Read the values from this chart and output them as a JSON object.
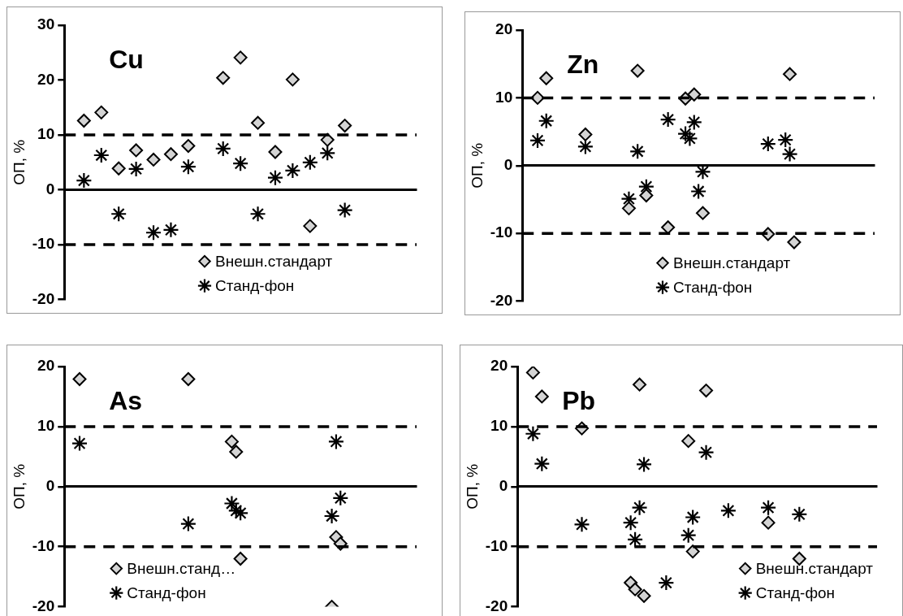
{
  "chart_data": [
    {
      "type": "scatter",
      "title": "Cu",
      "ylabel": "ОП, %",
      "categories": [
        null,
        null,
        null,
        null,
        null,
        null,
        null,
        null,
        null,
        null,
        null,
        null,
        null,
        null,
        null,
        null,
        null,
        null,
        null,
        null,
        null,
        null,
        null,
        null,
        null,
        null,
        null,
        null,
        null,
        null,
        null,
        null,
        null,
        null,
        null,
        null,
        null,
        null,
        null,
        null,
        null,
        null,
        null,
        null,
        null,
        null,
        null,
        null,
        null,
        null,
        null,
        null,
        null,
        null,
        null,
        null,
        null,
        null,
        null,
        null,
        null,
        null,
        null,
        null,
        null,
        null,
        null,
        null,
        null,
        null,
        null,
        null,
        null,
        null,
        null,
        null,
        null,
        null,
        null,
        null,
        null
      ],
      "ylim": [
        -20,
        30
      ],
      "yticks": [
        -20,
        -10,
        0,
        10,
        20,
        30
      ],
      "tick_labels": "y",
      "legend": "bottom",
      "line_style": "dashed",
      "ref_lines": [
        {
          "axis": "y",
          "value": 10
        },
        {
          "axis": "y",
          "value": -10
        }
      ],
      "series": [
        {
          "name": "Внешн.стандарт",
          "color": "#d4d4d4",
          "marker": "diamond",
          "values": [
            null,
            null,
            null,
            null,
            12.6,
            null,
            null,
            null,
            14.1,
            null,
            null,
            null,
            3.9,
            null,
            null,
            null,
            7.2,
            null,
            null,
            null,
            5.5,
            null,
            null,
            null,
            6.5,
            null,
            null,
            null,
            8.0,
            null,
            null,
            null,
            null,
            null,
            null,
            null,
            20.4,
            null,
            null,
            null,
            24.1,
            null,
            null,
            null,
            12.2,
            null,
            null,
            null,
            6.9,
            null,
            null,
            null,
            20.1,
            null,
            null,
            null,
            -6.6,
            null,
            null,
            null,
            9.1,
            null,
            null,
            null,
            11.7,
            null,
            null,
            null,
            null,
            null,
            null,
            null,
            null,
            null,
            null,
            null,
            null,
            null,
            null,
            null,
            null
          ]
        },
        {
          "name": "Станд-фон",
          "color": "#000000",
          "marker": "cross",
          "values": [
            null,
            null,
            null,
            null,
            1.7,
            null,
            null,
            null,
            6.3,
            null,
            null,
            null,
            -4.4,
            null,
            null,
            null,
            3.8,
            null,
            null,
            null,
            -7.8,
            null,
            null,
            null,
            -7.3,
            null,
            null,
            null,
            4.2,
            null,
            null,
            null,
            null,
            null,
            null,
            null,
            7.5,
            null,
            null,
            null,
            4.8,
            null,
            null,
            null,
            -4.4,
            null,
            null,
            null,
            2.2,
            null,
            null,
            null,
            3.5,
            null,
            null,
            null,
            5.0,
            null,
            null,
            null,
            6.7,
            null,
            null,
            null,
            -3.7,
            null,
            null,
            null,
            null,
            null,
            null,
            null,
            null,
            null,
            null,
            null,
            null,
            null,
            null,
            null,
            null
          ]
        }
      ]
    },
    {
      "type": "scatter",
      "title": "Zn",
      "ylabel": "ОП, %",
      "categories": [
        null,
        null,
        null,
        null,
        null,
        null,
        null,
        null,
        null,
        null,
        null,
        null,
        null,
        null,
        null,
        null,
        null,
        null,
        null,
        null,
        null,
        null,
        null,
        null,
        null,
        null,
        null,
        null,
        null,
        null,
        null,
        null,
        null,
        null,
        null,
        null,
        null,
        null,
        null,
        null,
        null,
        null,
        null,
        null,
        null,
        null,
        null,
        null,
        null,
        null,
        null,
        null,
        null,
        null,
        null,
        null,
        null,
        null,
        null,
        null,
        null,
        null,
        null,
        null,
        null,
        null,
        null,
        null,
        null,
        null,
        null,
        null,
        null,
        null,
        null,
        null,
        null,
        null,
        null,
        null,
        null
      ],
      "ylim": [
        -20,
        20
      ],
      "yticks": [
        -20,
        -10,
        0,
        10,
        20
      ],
      "tick_labels": "y",
      "legend": "bottom",
      "line_style": "dashed",
      "ref_lines": [
        {
          "axis": "y",
          "value": 10
        },
        {
          "axis": "y",
          "value": -10
        }
      ],
      "series": [
        {
          "name": "Внешн.стандарт",
          "color": "#d4d4d4",
          "marker": "diamond",
          "values": [
            null,
            null,
            null,
            10.0,
            null,
            12.9,
            null,
            null,
            null,
            null,
            null,
            null,
            null,
            null,
            4.6,
            null,
            null,
            null,
            null,
            null,
            null,
            null,
            null,
            null,
            -6.3,
            null,
            14.0,
            null,
            -4.4,
            null,
            null,
            null,
            null,
            -9.1,
            null,
            null,
            null,
            9.9,
            null,
            10.5,
            null,
            -7.0,
            null,
            null,
            null,
            null,
            null,
            null,
            null,
            null,
            null,
            null,
            null,
            null,
            null,
            null,
            -10.1,
            null,
            null,
            null,
            null,
            13.5,
            -11.3,
            null,
            null,
            null,
            null,
            null,
            null,
            null,
            null,
            null,
            null,
            null,
            null,
            null,
            null,
            null,
            null,
            null,
            null
          ]
        },
        {
          "name": "Станд-фон",
          "color": "#000000",
          "marker": "cross",
          "values": [
            null,
            null,
            null,
            3.7,
            null,
            6.6,
            null,
            null,
            null,
            null,
            null,
            null,
            null,
            null,
            2.8,
            null,
            null,
            null,
            null,
            null,
            null,
            null,
            null,
            null,
            -4.9,
            null,
            2.1,
            null,
            -3.1,
            null,
            null,
            null,
            null,
            6.8,
            null,
            null,
            null,
            4.7,
            4.0,
            6.4,
            -3.8,
            -0.9,
            null,
            null,
            null,
            null,
            null,
            null,
            null,
            null,
            null,
            null,
            null,
            null,
            null,
            null,
            3.2,
            null,
            null,
            null,
            3.8,
            1.7,
            null,
            null,
            null,
            null,
            null,
            null,
            null,
            null,
            null,
            null,
            null,
            null,
            null,
            null,
            null,
            null,
            null,
            null,
            null
          ]
        }
      ]
    },
    {
      "type": "scatter",
      "title": "As",
      "ylabel": "ОП, %",
      "categories": [
        null,
        null,
        null,
        null,
        null,
        null,
        null,
        null,
        null,
        null,
        null,
        null,
        null,
        null,
        null,
        null,
        null,
        null,
        null,
        null,
        null,
        null,
        null,
        null,
        null,
        null,
        null,
        null,
        null,
        null,
        null,
        null,
        null,
        null,
        null,
        null,
        null,
        null,
        null,
        null,
        null,
        null,
        null,
        null,
        null,
        null,
        null,
        null,
        null,
        null,
        null,
        null,
        null,
        null,
        null,
        null,
        null,
        null,
        null,
        null,
        null,
        null,
        null,
        null,
        null,
        null,
        null,
        null,
        null,
        null,
        null,
        null,
        null,
        null,
        null,
        null,
        null,
        null,
        null,
        null,
        null
      ],
      "ylim": [
        -20,
        20
      ],
      "yticks": [
        -20,
        -10,
        0,
        10,
        20
      ],
      "tick_labels": "y",
      "legend": "bottom left",
      "line_style": "dashed",
      "ref_lines": [
        {
          "axis": "y",
          "value": 10
        },
        {
          "axis": "y",
          "value": -10
        }
      ],
      "series": [
        {
          "name": "Внешн.станд…",
          "color": "#d4d4d4",
          "marker": "diamond",
          "values": [
            null,
            null,
            null,
            17.9,
            null,
            null,
            null,
            null,
            null,
            null,
            null,
            null,
            null,
            null,
            null,
            null,
            null,
            null,
            null,
            null,
            null,
            null,
            null,
            null,
            null,
            null,
            null,
            null,
            17.9,
            null,
            null,
            null,
            null,
            null,
            null,
            null,
            null,
            null,
            7.5,
            5.8,
            -12.0,
            null,
            null,
            null,
            null,
            null,
            null,
            null,
            null,
            null,
            null,
            null,
            null,
            null,
            null,
            null,
            null,
            null,
            null,
            null,
            null,
            -20.0,
            -8.4,
            -9.5,
            null,
            null,
            null,
            null,
            null,
            null,
            null,
            null,
            null,
            null,
            null,
            null,
            null,
            null,
            null,
            null,
            null
          ]
        },
        {
          "name": "Станд-фон",
          "color": "#000000",
          "marker": "cross",
          "values": [
            null,
            null,
            null,
            7.2,
            null,
            null,
            null,
            null,
            null,
            null,
            null,
            null,
            null,
            null,
            null,
            null,
            null,
            null,
            null,
            null,
            null,
            null,
            null,
            null,
            null,
            null,
            null,
            null,
            -6.2,
            null,
            null,
            null,
            null,
            null,
            null,
            null,
            null,
            null,
            -2.8,
            -4.0,
            -4.4,
            null,
            null,
            null,
            null,
            null,
            null,
            null,
            null,
            null,
            null,
            null,
            null,
            null,
            null,
            null,
            null,
            null,
            null,
            null,
            null,
            -4.9,
            7.5,
            -1.9,
            null,
            null,
            null,
            null,
            null,
            null,
            null,
            null,
            null,
            null,
            null,
            null,
            null,
            null,
            null,
            null,
            null
          ]
        }
      ]
    },
    {
      "type": "scatter",
      "title": "Pb",
      "ylabel": "ОП, %",
      "categories": [
        null,
        null,
        null,
        null,
        null,
        null,
        null,
        null,
        null,
        null,
        null,
        null,
        null,
        null,
        null,
        null,
        null,
        null,
        null,
        null,
        null,
        null,
        null,
        null,
        null,
        null,
        null,
        null,
        null,
        null,
        null,
        null,
        null,
        null,
        null,
        null,
        null,
        null,
        null,
        null,
        null,
        null,
        null,
        null,
        null,
        null,
        null,
        null,
        null,
        null,
        null,
        null,
        null,
        null,
        null,
        null,
        null,
        null,
        null,
        null,
        null,
        null,
        null,
        null,
        null,
        null,
        null,
        null,
        null,
        null,
        null,
        null,
        null,
        null,
        null,
        null,
        null,
        null,
        null,
        null,
        null
      ],
      "ylim": [
        -20,
        20
      ],
      "yticks": [
        -20,
        -10,
        0,
        10,
        20
      ],
      "tick_labels": "y",
      "legend": "bottom right",
      "line_style": "dashed",
      "ref_lines": [
        {
          "axis": "y",
          "value": 10
        },
        {
          "axis": "y",
          "value": -10
        }
      ],
      "series": [
        {
          "name": "Внешн.стандарт",
          "color": "#d4d4d4",
          "marker": "diamond",
          "values": [
            null,
            null,
            null,
            19.0,
            null,
            15.0,
            null,
            null,
            null,
            null,
            null,
            null,
            null,
            null,
            9.7,
            null,
            null,
            null,
            null,
            null,
            null,
            null,
            null,
            null,
            null,
            -16.0,
            -17.1,
            17.0,
            -18.2,
            null,
            null,
            null,
            null,
            null,
            null,
            null,
            null,
            null,
            7.6,
            -10.8,
            null,
            null,
            16.0,
            null,
            null,
            null,
            null,
            null,
            null,
            null,
            null,
            null,
            null,
            null,
            null,
            null,
            -6.0,
            null,
            null,
            null,
            null,
            null,
            null,
            -12.0,
            null,
            null,
            null,
            null,
            null,
            null,
            null,
            null,
            null,
            null,
            null,
            null,
            null,
            null,
            null,
            null,
            null
          ]
        },
        {
          "name": "Станд-фон",
          "color": "#000000",
          "marker": "cross",
          "values": [
            null,
            null,
            null,
            8.8,
            null,
            3.8,
            null,
            null,
            null,
            null,
            null,
            null,
            null,
            null,
            -6.3,
            null,
            null,
            null,
            null,
            null,
            null,
            null,
            null,
            null,
            null,
            -6.0,
            -8.8,
            -3.5,
            3.7,
            null,
            null,
            null,
            null,
            -16.0,
            null,
            null,
            null,
            null,
            -8.1,
            -5.1,
            null,
            null,
            5.7,
            null,
            null,
            null,
            null,
            -4.0,
            null,
            null,
            null,
            null,
            null,
            null,
            null,
            null,
            -3.5,
            null,
            null,
            null,
            null,
            null,
            null,
            -4.6,
            null,
            null,
            null,
            null,
            null,
            null,
            null,
            null,
            null,
            null,
            null,
            null,
            null,
            null,
            null,
            null,
            null
          ]
        }
      ]
    }
  ]
}
